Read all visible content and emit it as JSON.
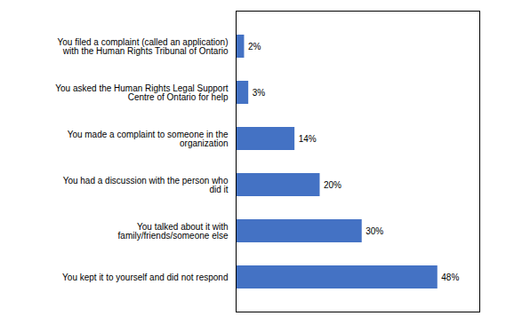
{
  "chart_data": {
    "type": "bar",
    "orientation": "horizontal",
    "categories": [
      "You kept it to yourself and did not respond",
      "You talked about it with\nfamily/friends/someone else",
      "You had a discussion with the person who\ndid it",
      "You made a complaint to someone in the\norganization",
      "You asked the Human Rights Legal Support\nCentre of Ontario for help",
      "You filed a complaint (called an application)\nwith the Human Rights Tribunal of Ontario"
    ],
    "values": [
      48,
      30,
      20,
      14,
      3,
      2
    ],
    "value_labels": [
      "48%",
      "30%",
      "20%",
      "14%",
      "3%",
      "2%"
    ],
    "color": "#4472C4",
    "xlim": [
      0,
      58
    ],
    "data_labels": true,
    "tick_labels": "y",
    "grid": false
  }
}
